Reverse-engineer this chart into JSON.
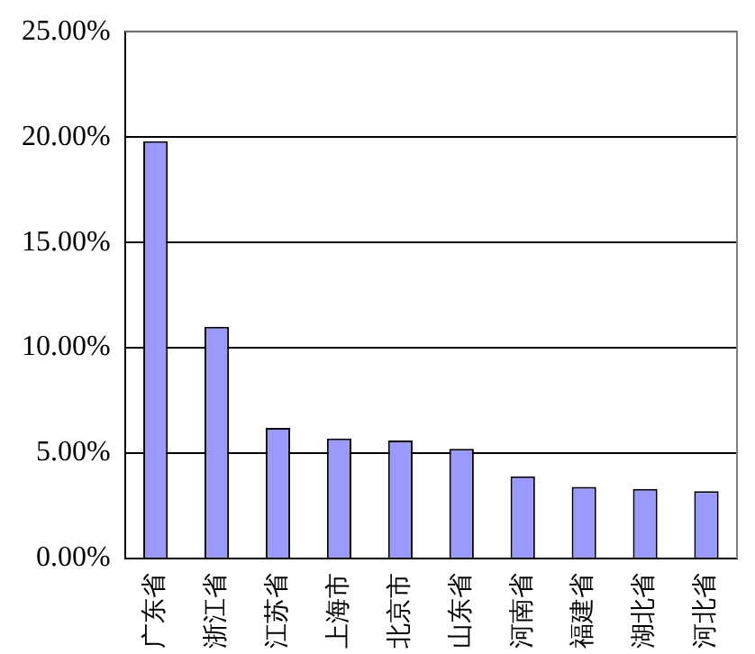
{
  "chart_data": {
    "type": "bar",
    "categories": [
      "广东省",
      "浙江省",
      "江苏省",
      "上海市",
      "北京市",
      "山东省",
      "河南省",
      "福建省",
      "湖北省",
      "河北省"
    ],
    "values": [
      19.8,
      11.0,
      6.2,
      5.7,
      5.6,
      5.2,
      3.9,
      3.4,
      3.3,
      3.2
    ],
    "color": "#9999ff",
    "ylim": [
      0,
      25
    ],
    "yticks": [
      {
        "value": 0,
        "label": "0.00%"
      },
      {
        "value": 5,
        "label": "5.00%"
      },
      {
        "value": 10,
        "label": "10.00%"
      },
      {
        "value": 15,
        "label": "15.00%"
      },
      {
        "value": 20,
        "label": "20.00%"
      },
      {
        "value": 25,
        "label": "25.00%"
      }
    ],
    "grid": "y",
    "legend": false
  }
}
